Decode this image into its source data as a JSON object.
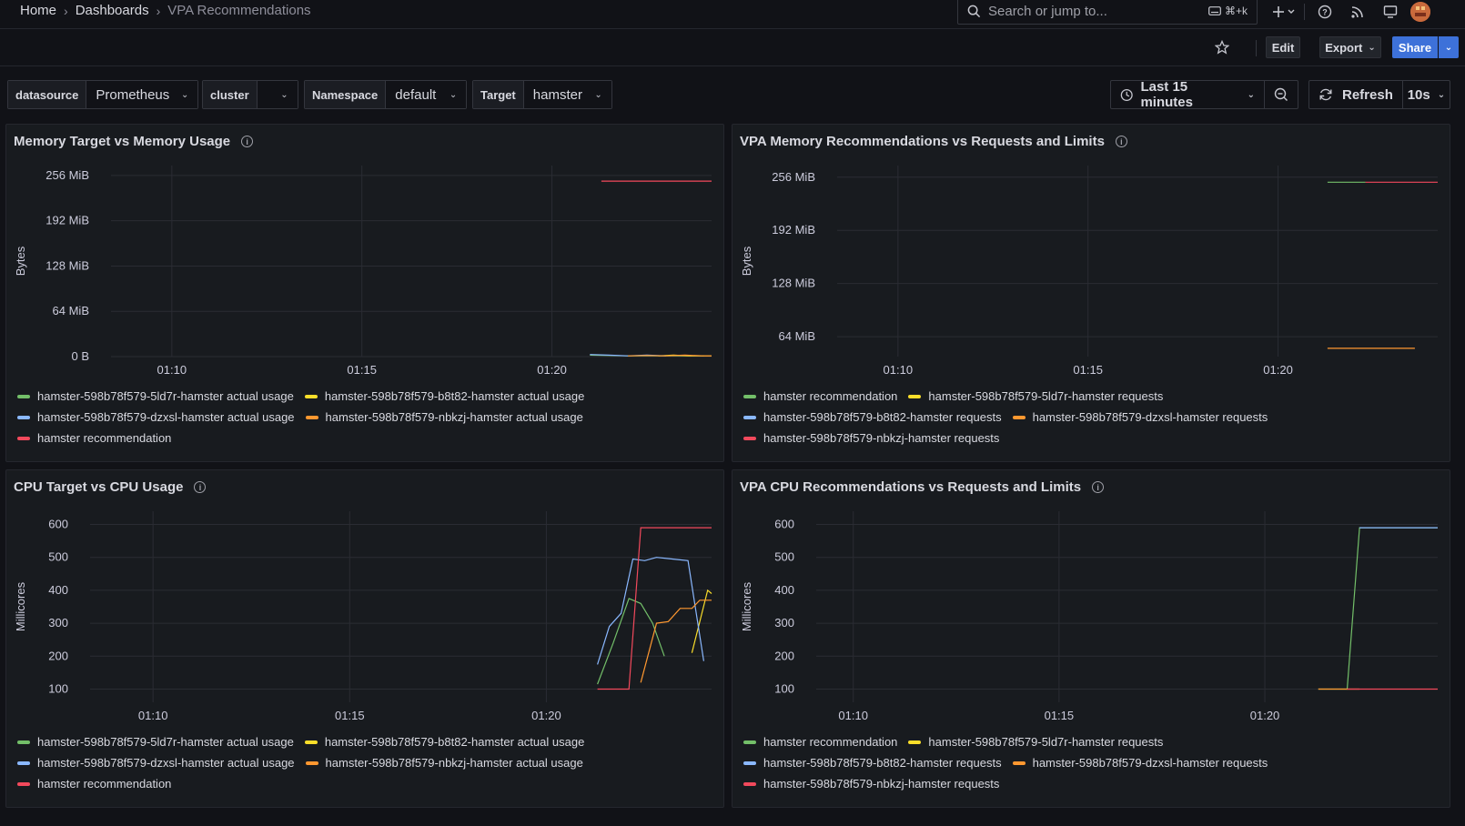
{
  "breadcrumb": {
    "home": "Home",
    "dashboards": "Dashboards",
    "current": "VPA Recommendations"
  },
  "search": {
    "placeholder": "Search or jump to...",
    "shortcut": "⌘+k"
  },
  "toolbar": {
    "edit": "Edit",
    "export": "Export",
    "share": "Share"
  },
  "variables": [
    {
      "label": "datasource",
      "value": "Prometheus"
    },
    {
      "label": "cluster",
      "value": ""
    },
    {
      "label": "Namespace",
      "value": "default"
    },
    {
      "label": "Target",
      "value": "hamster"
    }
  ],
  "time_picker": {
    "range": "Last 15 minutes"
  },
  "refresh": {
    "label": "Refresh",
    "interval": "10s"
  },
  "colors": {
    "green": "#73bf69",
    "yellow": "#fade2a",
    "blue": "#8ab8ff",
    "orange": "#ff9830",
    "red": "#f2495c"
  },
  "panels": [
    {
      "title": "Memory Target vs Memory Usage",
      "ylabel": "Bytes",
      "yticks": [
        "256 MiB",
        "192 MiB",
        "128 MiB",
        "64 MiB",
        "0 B"
      ],
      "xticks": [
        "01:10",
        "01:15",
        "01:20"
      ],
      "legend": [
        [
          {
            "name": "hamster-598b78f579-5ld7r-hamster actual usage",
            "color": "green"
          },
          {
            "name": "hamster-598b78f579-b8t82-hamster actual usage",
            "color": "yellow"
          }
        ],
        [
          {
            "name": "hamster-598b78f579-dzxsl-hamster actual usage",
            "color": "blue"
          },
          {
            "name": "hamster-598b78f579-nbkzj-hamster actual usage",
            "color": "orange"
          }
        ],
        [
          {
            "name": "hamster recommendation",
            "color": "red"
          }
        ]
      ]
    },
    {
      "title": "VPA Memory Recommendations vs Requests and Limits",
      "ylabel": "Bytes",
      "yticks": [
        "256 MiB",
        "192 MiB",
        "128 MiB",
        "64 MiB"
      ],
      "xticks": [
        "01:10",
        "01:15",
        "01:20"
      ],
      "legend": [
        [
          {
            "name": "hamster recommendation",
            "color": "green"
          },
          {
            "name": "hamster-598b78f579-5ld7r-hamster requests",
            "color": "yellow"
          }
        ],
        [
          {
            "name": "hamster-598b78f579-b8t82-hamster requests",
            "color": "blue"
          },
          {
            "name": "hamster-598b78f579-dzxsl-hamster requests",
            "color": "orange"
          }
        ],
        [
          {
            "name": "hamster-598b78f579-nbkzj-hamster requests",
            "color": "red"
          }
        ]
      ]
    },
    {
      "title": "CPU Target vs CPU Usage",
      "ylabel": "Millicores",
      "yticks": [
        "600",
        "500",
        "400",
        "300",
        "200",
        "100"
      ],
      "xticks": [
        "01:10",
        "01:15",
        "01:20"
      ],
      "legend": [
        [
          {
            "name": "hamster-598b78f579-5ld7r-hamster actual usage",
            "color": "green"
          },
          {
            "name": "hamster-598b78f579-b8t82-hamster actual usage",
            "color": "yellow"
          }
        ],
        [
          {
            "name": "hamster-598b78f579-dzxsl-hamster actual usage",
            "color": "blue"
          },
          {
            "name": "hamster-598b78f579-nbkzj-hamster actual usage",
            "color": "orange"
          }
        ],
        [
          {
            "name": "hamster recommendation",
            "color": "red"
          }
        ]
      ]
    },
    {
      "title": "VPA CPU Recommendations vs Requests and Limits",
      "ylabel": "Millicores",
      "yticks": [
        "600",
        "500",
        "400",
        "300",
        "200",
        "100"
      ],
      "xticks": [
        "01:10",
        "01:15",
        "01:20"
      ],
      "legend": [
        [
          {
            "name": "hamster recommendation",
            "color": "green"
          },
          {
            "name": "hamster-598b78f579-5ld7r-hamster requests",
            "color": "yellow"
          }
        ],
        [
          {
            "name": "hamster-598b78f579-b8t82-hamster requests",
            "color": "blue"
          },
          {
            "name": "hamster-598b78f579-dzxsl-hamster requests",
            "color": "orange"
          }
        ],
        [
          {
            "name": "hamster-598b78f579-nbkzj-hamster requests",
            "color": "red"
          }
        ]
      ]
    }
  ],
  "chart_data": [
    {
      "type": "line",
      "title": "Memory Target vs Memory Usage",
      "ylabel": "Bytes",
      "x_unit": "minutes after 01:10",
      "xlim": [
        -1.6,
        14.2
      ],
      "ylim": [
        0,
        270
      ],
      "grid": true,
      "legend_position": "bottom",
      "series": [
        {
          "name": "hamster-598b78f579-5ld7r-hamster actual usage",
          "color": "green",
          "x": [
            11,
            11.5,
            12,
            12.5,
            13,
            13.5,
            14
          ],
          "y": [
            2,
            1.5,
            1,
            1.2,
            1,
            1,
            1
          ]
        },
        {
          "name": "hamster-598b78f579-b8t82-hamster actual usage",
          "color": "yellow",
          "x": [
            12.8,
            13.2,
            13.6,
            14.2
          ],
          "y": [
            1,
            2,
            1,
            1
          ]
        },
        {
          "name": "hamster-598b78f579-dzxsl-hamster actual usage",
          "color": "blue",
          "x": [
            11,
            11.5,
            12,
            12.5,
            13
          ],
          "y": [
            3,
            2,
            1,
            2,
            1
          ]
        },
        {
          "name": "hamster-598b78f579-nbkzj-hamster actual usage",
          "color": "orange",
          "x": [
            12,
            12.5,
            13,
            13.5,
            14,
            14.2
          ],
          "y": [
            1,
            1.5,
            1,
            2,
            1,
            1
          ]
        },
        {
          "name": "hamster recommendation",
          "color": "red",
          "x": [
            11.3,
            14.2
          ],
          "y": [
            248,
            248
          ]
        }
      ]
    },
    {
      "type": "line",
      "title": "VPA Memory Recommendations vs Requests and Limits",
      "ylabel": "Bytes",
      "x_unit": "minutes after 01:10",
      "xlim": [
        -1.6,
        14.2
      ],
      "ylim": [
        40,
        270
      ],
      "grid": true,
      "legend_position": "bottom",
      "series": [
        {
          "name": "hamster recommendation",
          "color": "green",
          "x": [
            11.3,
            12.3
          ],
          "y": [
            250,
            250
          ]
        },
        {
          "name": "hamster-598b78f579-5ld7r-hamster requests",
          "color": "yellow",
          "x": [],
          "y": []
        },
        {
          "name": "hamster-598b78f579-b8t82-hamster requests",
          "color": "blue",
          "x": [],
          "y": []
        },
        {
          "name": "hamster-598b78f579-dzxsl-hamster requests",
          "color": "orange",
          "x": [
            11.3,
            13.6
          ],
          "y": [
            50,
            50
          ]
        },
        {
          "name": "hamster-598b78f579-nbkzj-hamster requests",
          "color": "red",
          "x": [
            12.3,
            14.2
          ],
          "y": [
            250,
            250
          ]
        }
      ]
    },
    {
      "type": "line",
      "title": "CPU Target vs CPU Usage",
      "ylabel": "Millicores",
      "x_unit": "minutes after 01:10",
      "xlim": [
        -1.6,
        14.2
      ],
      "ylim": [
        60,
        640
      ],
      "grid": true,
      "legend_position": "bottom",
      "series": [
        {
          "name": "hamster-598b78f579-5ld7r-hamster actual usage",
          "color": "green",
          "x": [
            11.3,
            11.7,
            12.1,
            12.4,
            12.7,
            13.0
          ],
          "y": [
            115,
            240,
            375,
            360,
            300,
            200
          ]
        },
        {
          "name": "hamster-598b78f579-b8t82-hamster actual usage",
          "color": "yellow",
          "x": [
            13.7,
            14.1,
            14.2
          ],
          "y": [
            210,
            400,
            390
          ]
        },
        {
          "name": "hamster-598b78f579-dzxsl-hamster actual usage",
          "color": "blue",
          "x": [
            11.3,
            11.6,
            11.9,
            12.2,
            12.5,
            12.8,
            13.2,
            13.6,
            14.0
          ],
          "y": [
            175,
            290,
            330,
            495,
            490,
            500,
            495,
            490,
            185
          ]
        },
        {
          "name": "hamster-598b78f579-nbkzj-hamster actual usage",
          "color": "orange",
          "x": [
            12.4,
            12.8,
            13.1,
            13.4,
            13.7,
            13.9,
            14.2
          ],
          "y": [
            120,
            300,
            305,
            345,
            345,
            370,
            370
          ]
        },
        {
          "name": "hamster recommendation",
          "color": "red",
          "x": [
            11.3,
            12.1,
            12.4,
            14.2
          ],
          "y": [
            100,
            100,
            590,
            590
          ]
        }
      ]
    },
    {
      "type": "line",
      "title": "VPA CPU Recommendations vs Requests and Limits",
      "ylabel": "Millicores",
      "x_unit": "minutes after 01:10",
      "xlim": [
        -0.9,
        14.2
      ],
      "ylim": [
        60,
        640
      ],
      "grid": true,
      "legend_position": "bottom",
      "series": [
        {
          "name": "hamster recommendation",
          "color": "green",
          "x": [
            11.3,
            12.0,
            12.3,
            14.2
          ],
          "y": [
            100,
            100,
            590,
            590
          ]
        },
        {
          "name": "hamster-598b78f579-5ld7r-hamster requests",
          "color": "yellow",
          "x": [],
          "y": []
        },
        {
          "name": "hamster-598b78f579-b8t82-hamster requests",
          "color": "blue",
          "x": [
            12.3,
            14.2
          ],
          "y": [
            590,
            590
          ]
        },
        {
          "name": "hamster-598b78f579-dzxsl-hamster requests",
          "color": "orange",
          "x": [
            11.3,
            12.3
          ],
          "y": [
            100,
            100
          ]
        },
        {
          "name": "hamster-598b78f579-nbkzj-hamster requests",
          "color": "red",
          "x": [
            12.0,
            14.2
          ],
          "y": [
            100,
            100
          ]
        }
      ]
    }
  ]
}
